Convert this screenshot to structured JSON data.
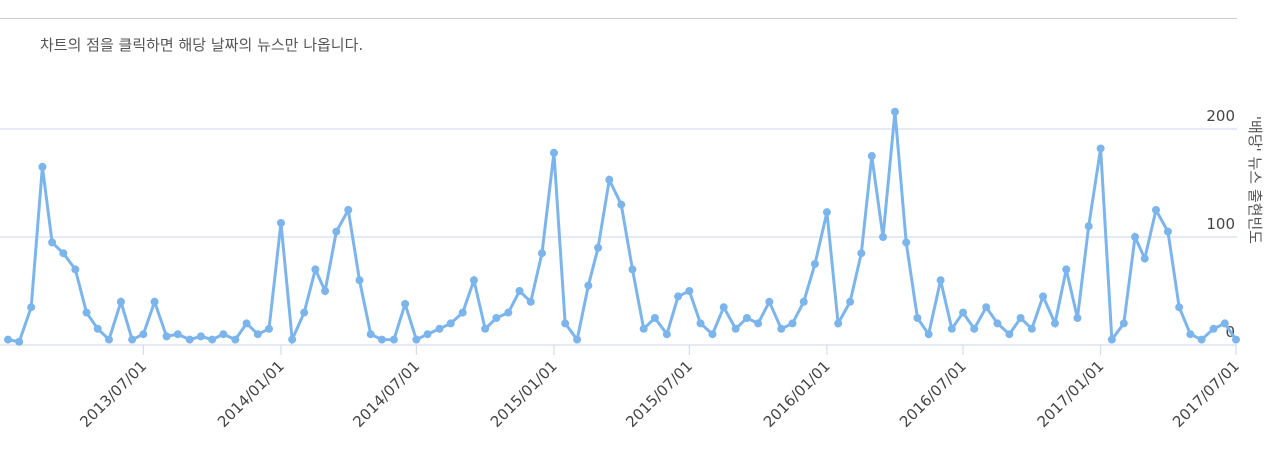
{
  "chart_data": {
    "type": "line",
    "subtitle": "차트의 점을 클릭하면 해당 날짜의 뉴스만 나옵니다.",
    "y_label": "'배당' 뉴스 출현빈도",
    "color": "#7cb5ec",
    "grid": true,
    "xlim": [
      "2013/01/01",
      "2017/07/01"
    ],
    "xticks": [
      "2013/07/01",
      "2014/01/01",
      "2014/07/01",
      "2015/01/01",
      "2015/07/01",
      "2016/01/01",
      "2016/07/01",
      "2017/01/01",
      "2017/07/01"
    ],
    "ylim": [
      0,
      300
    ],
    "yticks": [
      0,
      100,
      200
    ],
    "x": [
      "2013/01/01",
      "2013/01/16",
      "2013/02/01",
      "2013/02/16",
      "2013/03/01",
      "2013/03/16",
      "2013/04/01",
      "2013/04/16",
      "2013/05/01",
      "2013/05/16",
      "2013/06/01",
      "2013/06/16",
      "2013/07/01",
      "2013/07/16",
      "2013/08/01",
      "2013/08/16",
      "2013/09/01",
      "2013/09/16",
      "2013/10/01",
      "2013/10/16",
      "2013/11/01",
      "2013/11/16",
      "2013/12/01",
      "2013/12/16",
      "2014/01/01",
      "2014/01/16",
      "2014/02/01",
      "2014/02/16",
      "2014/03/01",
      "2014/03/16",
      "2014/04/01",
      "2014/04/16",
      "2014/05/01",
      "2014/05/16",
      "2014/06/01",
      "2014/06/16",
      "2014/07/01",
      "2014/07/16",
      "2014/08/01",
      "2014/08/16",
      "2014/09/01",
      "2014/09/16",
      "2014/10/01",
      "2014/10/16",
      "2014/11/01",
      "2014/11/16",
      "2014/12/01",
      "2014/12/16",
      "2015/01/01",
      "2015/01/16",
      "2015/02/01",
      "2015/02/16",
      "2015/03/01",
      "2015/03/16",
      "2015/04/01",
      "2015/04/16",
      "2015/05/01",
      "2015/05/16",
      "2015/06/01",
      "2015/06/16",
      "2015/07/01",
      "2015/07/16",
      "2015/08/01",
      "2015/08/16",
      "2015/09/01",
      "2015/09/16",
      "2015/10/01",
      "2015/10/16",
      "2015/11/01",
      "2015/11/16",
      "2015/12/01",
      "2015/12/16",
      "2016/01/01",
      "2016/01/16",
      "2016/02/01",
      "2016/02/16",
      "2016/03/01",
      "2016/03/16",
      "2016/04/01",
      "2016/04/16",
      "2016/05/01",
      "2016/05/16",
      "2016/06/01",
      "2016/06/16",
      "2016/07/01",
      "2016/07/16",
      "2016/08/01",
      "2016/08/16",
      "2016/09/01",
      "2016/09/16",
      "2016/10/01",
      "2016/10/16",
      "2016/11/01",
      "2016/11/16",
      "2016/12/01",
      "2016/12/16",
      "2017/01/01",
      "2017/01/16",
      "2017/02/01",
      "2017/02/16",
      "2017/03/01",
      "2017/03/16",
      "2017/04/01",
      "2017/04/16",
      "2017/05/01",
      "2017/05/16",
      "2017/06/01",
      "2017/06/16",
      "2017/07/01"
    ],
    "values": [
      5,
      3,
      35,
      165,
      95,
      85,
      70,
      30,
      15,
      5,
      40,
      5,
      10,
      40,
      8,
      10,
      5,
      8,
      5,
      10,
      5,
      20,
      10,
      15,
      113,
      5,
      30,
      70,
      50,
      105,
      125,
      60,
      10,
      5,
      5,
      38,
      5,
      10,
      15,
      20,
      30,
      60,
      15,
      25,
      30,
      50,
      40,
      85,
      178,
      20,
      5,
      55,
      90,
      153,
      130,
      70,
      15,
      25,
      10,
      45,
      50,
      20,
      10,
      35,
      15,
      25,
      20,
      40,
      15,
      20,
      40,
      75,
      123,
      20,
      40,
      85,
      175,
      100,
      216,
      95,
      25,
      10,
      60,
      15,
      30,
      15,
      35,
      20,
      10,
      25,
      15,
      45,
      20,
      70,
      25,
      110,
      182,
      5,
      20,
      100,
      80,
      125,
      105,
      35,
      10,
      5,
      15,
      20,
      5
    ]
  }
}
